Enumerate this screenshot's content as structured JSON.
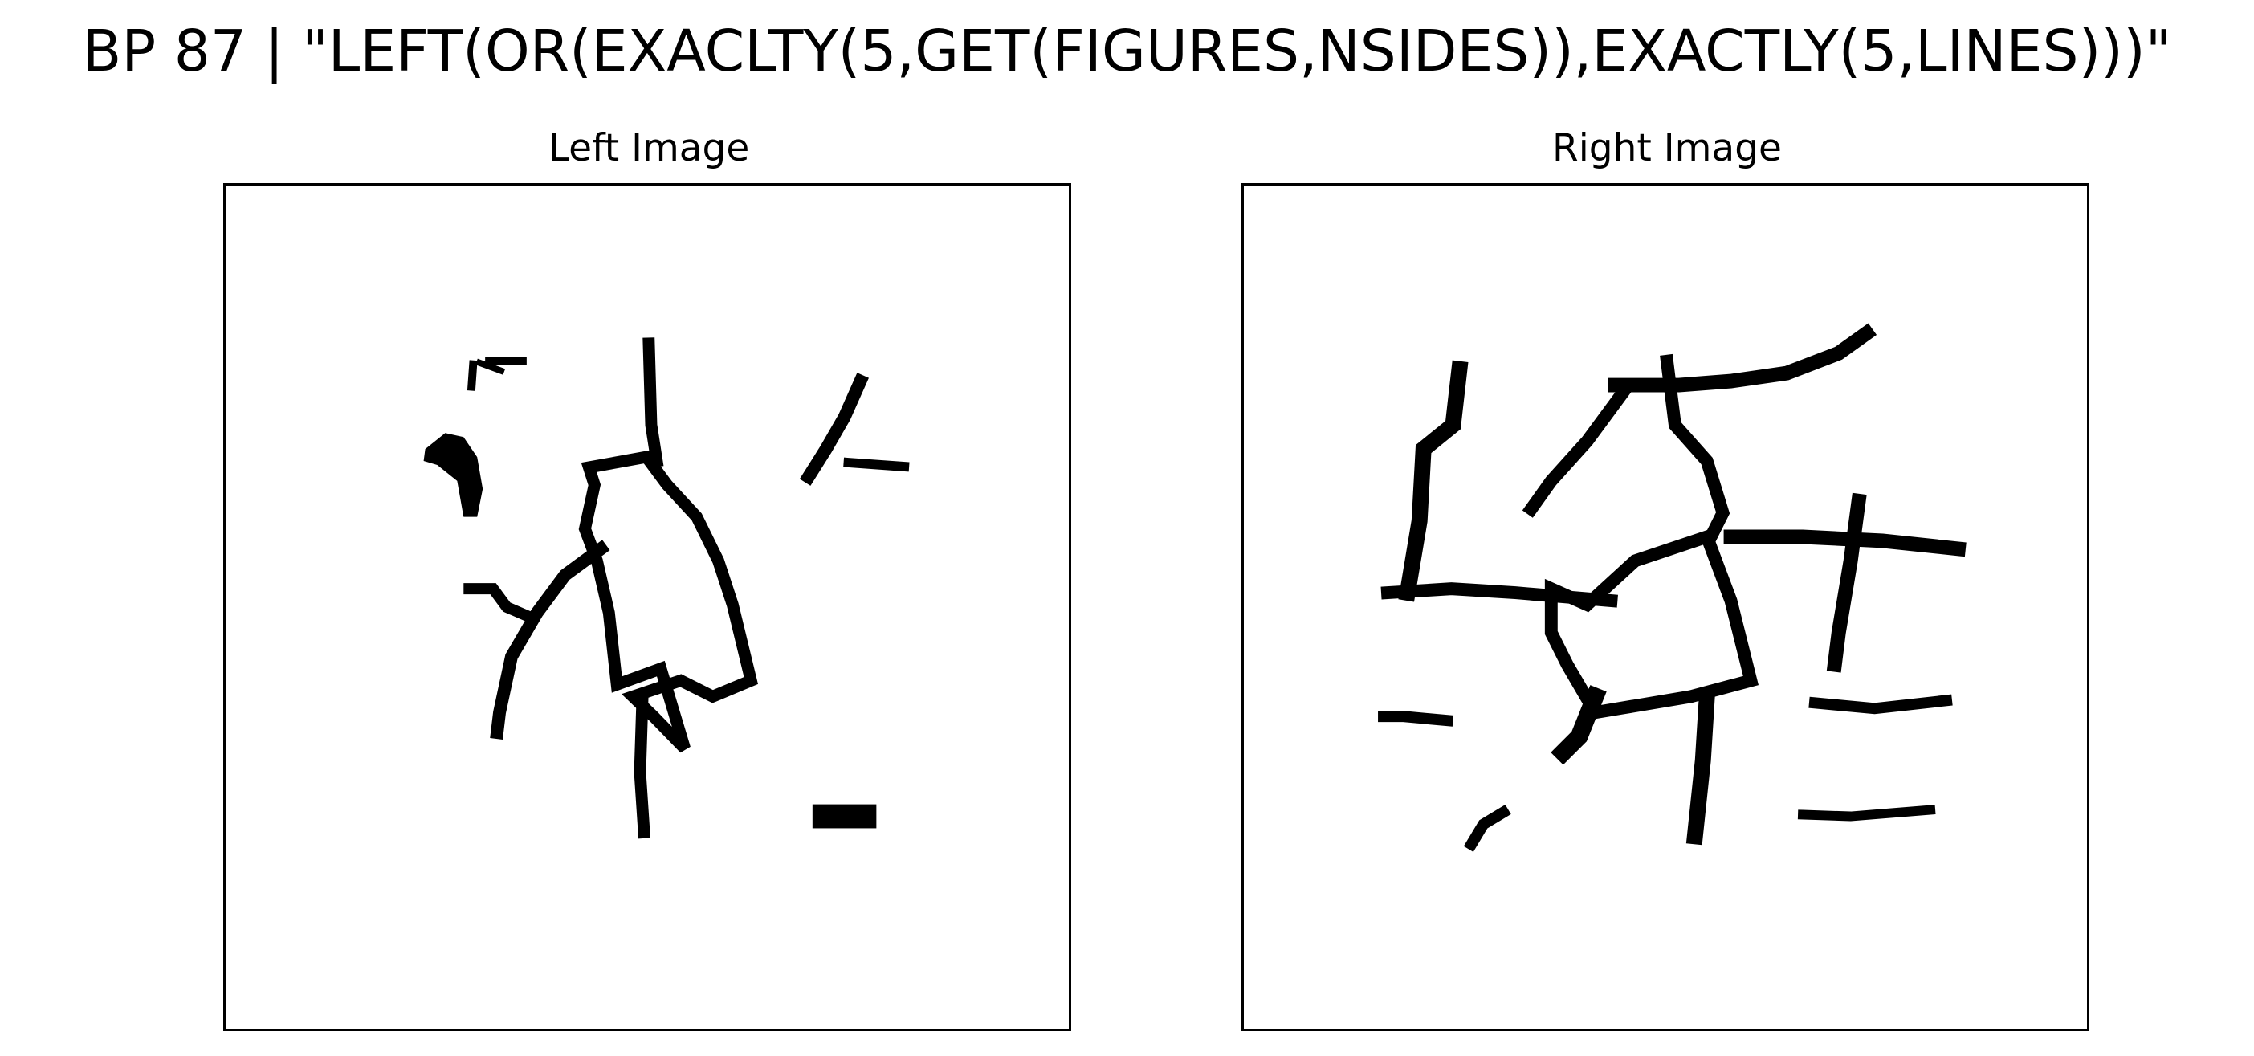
{
  "title": "BP 87 | \"LEFT(OR(EXACLTY(5,GET(FIGURES,NSIDES)),EXACTLY(5,LINES)))\"",
  "panels": [
    {
      "title": "Left Image"
    },
    {
      "title": "Right Image"
    }
  ],
  "colors": {
    "ink": "#000000",
    "background": "#ffffff",
    "frame": "#000000"
  }
}
